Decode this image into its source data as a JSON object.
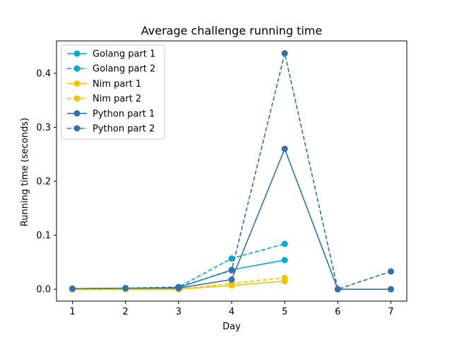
{
  "chart_data": {
    "type": "line",
    "title": "Average challenge running time",
    "xlabel": "Day",
    "ylabel": "Running time (seconds)",
    "xlim": [
      0.7,
      7.3
    ],
    "ylim": [
      -0.022,
      0.46
    ],
    "xticks": [
      1,
      2,
      3,
      4,
      5,
      6,
      7
    ],
    "yticks": [
      0.0,
      0.1,
      0.2,
      0.3,
      0.4
    ],
    "ytick_labels": [
      "0.0",
      "0.1",
      "0.2",
      "0.3",
      "0.4"
    ],
    "grid": false,
    "legend_position": "top-left",
    "series": [
      {
        "name": "Golang part 1",
        "color": "#00aad4",
        "style": "solid",
        "x": [
          1,
          2,
          3,
          4,
          5
        ],
        "values": [
          0.001,
          0.001,
          0.003,
          0.036,
          0.054
        ]
      },
      {
        "name": "Golang part 2",
        "color": "#00aad4",
        "style": "dashed",
        "x": [
          1,
          2,
          3,
          4,
          5
        ],
        "values": [
          0.001,
          0.001,
          0.004,
          0.057,
          0.084
        ]
      },
      {
        "name": "Nim part 1",
        "color": "#f5c400",
        "style": "solid",
        "x": [
          1,
          2,
          3,
          4,
          5
        ],
        "values": [
          0.0,
          0.0,
          0.0,
          0.007,
          0.015
        ]
      },
      {
        "name": "Nim part 2",
        "color": "#f5c400",
        "style": "dashed",
        "x": [
          1,
          2,
          3,
          4,
          5
        ],
        "values": [
          0.0,
          0.0,
          0.0,
          0.011,
          0.021
        ]
      },
      {
        "name": "Python part 1",
        "color": "#3372a8",
        "style": "solid",
        "x": [
          1,
          2,
          3,
          4,
          5,
          6,
          7
        ],
        "values": [
          0.001,
          0.002,
          0.002,
          0.018,
          0.26,
          0.0,
          0.0
        ]
      },
      {
        "name": "Python part 2",
        "color": "#3372a8",
        "style": "dashed",
        "x": [
          1,
          2,
          3,
          4,
          5,
          6,
          7
        ],
        "values": [
          0.001,
          0.002,
          0.004,
          0.035,
          0.437,
          0.0,
          0.033
        ]
      }
    ]
  }
}
